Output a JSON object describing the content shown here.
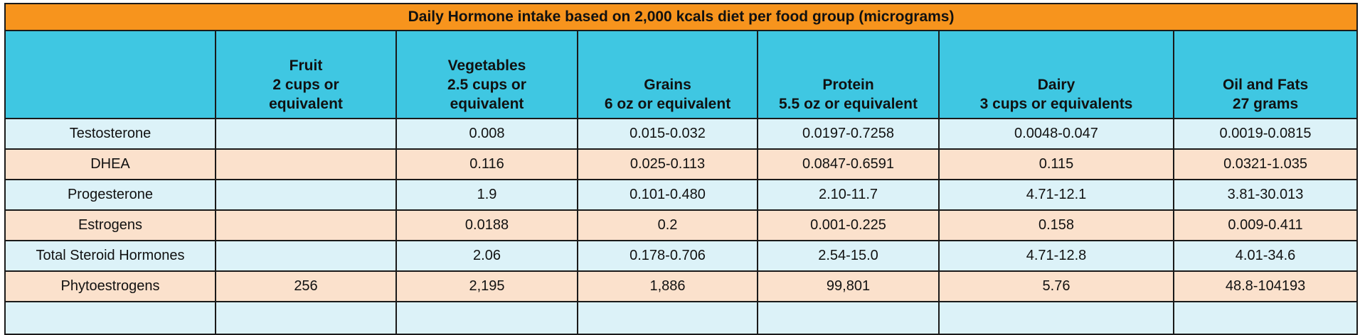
{
  "title": "Daily Hormone intake based on 2,000 kcals diet per food group (micrograms)",
  "columns": [
    {
      "lines": []
    },
    {
      "lines": [
        "Fruit",
        "2 cups or",
        "equivalent"
      ]
    },
    {
      "lines": [
        "Vegetables",
        "2.5 cups or",
        "equivalent"
      ]
    },
    {
      "lines": [
        "Grains",
        "6 oz or equivalent"
      ]
    },
    {
      "lines": [
        "Protein",
        "5.5 oz or equivalent"
      ]
    },
    {
      "lines": [
        "Dairy",
        "3 cups or equivalents"
      ]
    },
    {
      "lines": [
        "Oil and Fats",
        "27 grams"
      ]
    }
  ],
  "rows": [
    {
      "label": "Testosterone",
      "cells": [
        "",
        "0.008",
        "0.015-0.032",
        "0.0197-0.7258",
        "0.0048-0.047",
        "0.0019-0.0815"
      ]
    },
    {
      "label": "DHEA",
      "cells": [
        "",
        "0.116",
        "0.025-0.113",
        "0.0847-0.6591",
        "0.115",
        "0.0321-1.035"
      ]
    },
    {
      "label": "Progesterone",
      "cells": [
        "",
        "1.9",
        "0.101-0.480",
        "2.10-11.7",
        "4.71-12.1",
        "3.81-30.013"
      ]
    },
    {
      "label": "Estrogens",
      "cells": [
        "",
        "0.0188",
        "0.2",
        "0.001-0.225",
        "0.158",
        "0.009-0.411"
      ]
    },
    {
      "label": "Total Steroid Hormones",
      "cells": [
        "",
        "2.06",
        "0.178-0.706",
        "2.54-15.0",
        "4.71-12.8",
        "4.01-34.6"
      ]
    },
    {
      "label": "Phytoestrogens",
      "cells": [
        "256",
        "2,195",
        "1,886",
        "99,801",
        "5.76",
        "48.8-104193"
      ]
    },
    {
      "label": "",
      "cells": [
        "",
        "",
        "",
        "",
        "",
        ""
      ]
    }
  ],
  "colors": {
    "title_bg": "#f7941d",
    "header_bg": "#3fc7e2",
    "row_blue": "#dcf2f8",
    "row_peach": "#fbe1cc",
    "border": "#1a1a1a"
  }
}
